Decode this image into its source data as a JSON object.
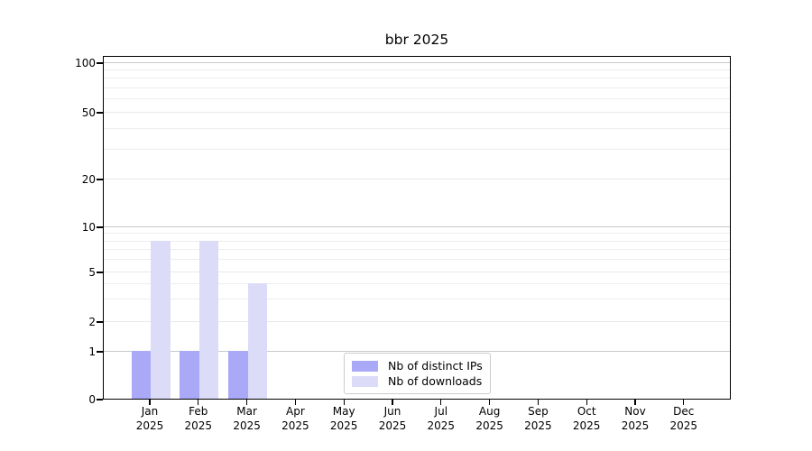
{
  "chart_data": {
    "type": "bar",
    "title": "bbr 2025",
    "categories": [
      "Jan",
      "Feb",
      "Mar",
      "Apr",
      "May",
      "Jun",
      "Jul",
      "Aug",
      "Sep",
      "Oct",
      "Nov",
      "Dec"
    ],
    "year": "2025",
    "series": [
      {
        "name": "Nb of distinct IPs",
        "color": "#a9a9f8",
        "values": [
          1,
          1,
          1,
          0,
          0,
          0,
          0,
          0,
          0,
          0,
          0,
          0
        ]
      },
      {
        "name": "Nb of downloads",
        "color": "#dcdcf8",
        "values": [
          8,
          8,
          4,
          0,
          0,
          0,
          0,
          0,
          0,
          0,
          0,
          0
        ]
      }
    ],
    "xlabel": "",
    "ylabel": "",
    "y_ticks": [
      0,
      1,
      2,
      5,
      10,
      20,
      50,
      100
    ],
    "y_major_gridlines": [
      1,
      10,
      100
    ],
    "y_minor_gridlines": [
      3,
      4,
      6,
      7,
      8,
      9,
      30,
      40,
      60,
      70,
      80,
      90
    ],
    "y_scale": "linear 0-1, logarithmic above 1",
    "ylim": [
      0,
      110
    ],
    "grid": "horizontal, major and minor",
    "legend_position": "inside plot, lower center",
    "colors": {
      "axis": "#000000",
      "grid_major": "#c9c9c9",
      "grid_minor": "#ededed",
      "background": "#ffffff"
    }
  }
}
